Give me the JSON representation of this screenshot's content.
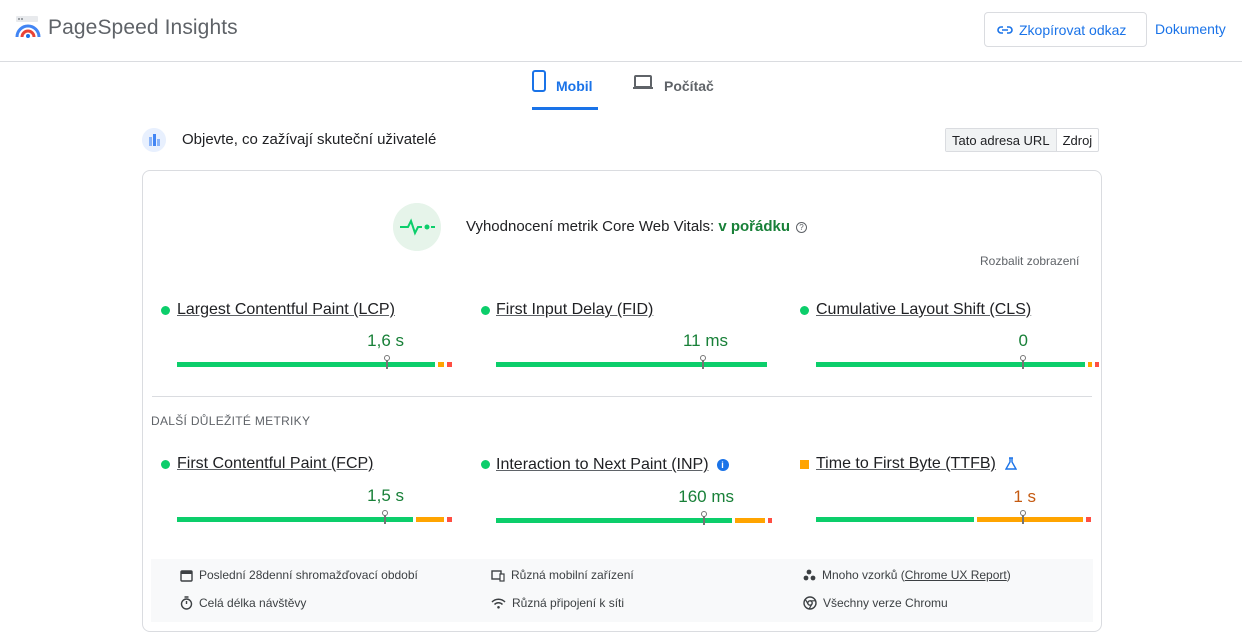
{
  "header": {
    "brand": "PageSpeed Insights",
    "copy_link_label": "Zkopírovat odkaz",
    "docs_label": "Dokumenty"
  },
  "tabs": [
    {
      "label": "Mobil",
      "active": true
    },
    {
      "label": "Počítač",
      "active": false
    }
  ],
  "field_section": {
    "title": "Objevte, co zažívají skuteční uživatelé",
    "toggle": [
      "Tato adresa URL",
      "Zdroj"
    ],
    "toggle_active": "Tato adresa URL"
  },
  "core_web_vitals": {
    "label": "Vyhodnocení metrik Core Web Vitals: ",
    "status": "v pořádku",
    "help_glyph": "?",
    "expand_label": "Rozbalit zobrazení"
  },
  "core_metrics": [
    {
      "name": "Largest Contentful Paint (LCP)",
      "value": "1,6 s",
      "status": "good",
      "distribution": {
        "good": 0.94,
        "needs_improvement": 0.03,
        "poor": 0.03
      },
      "p75_position": 0.755
    },
    {
      "name": "First Input Delay (FID)",
      "value": "11 ms",
      "status": "good",
      "distribution": {
        "good": 1.0,
        "needs_improvement": 0.0,
        "poor": 0.0
      },
      "p75_position": 0.755
    },
    {
      "name": "Cumulative Layout Shift (CLS)",
      "value": "0",
      "status": "good",
      "distribution": {
        "good": 0.98,
        "needs_improvement": 0.01,
        "poor": 0.01
      },
      "p75_position": 0.745
    }
  ],
  "other_metrics_title": "DALŠÍ DŮLEŽITÉ METRIKY",
  "other_metrics": [
    {
      "name": "First Contentful Paint (FCP)",
      "value": "1,5 s",
      "status": "good",
      "distribution": {
        "good": 0.86,
        "needs_improvement": 0.11,
        "poor": 0.03
      },
      "p75_position": 0.748
    },
    {
      "name": "Interaction to Next Paint (INP)",
      "value": "160 ms",
      "status": "good",
      "distribution": {
        "good": 0.86,
        "needs_improvement": 0.12,
        "poor": 0.02
      },
      "p75_position": 0.748,
      "info_glyph": "i"
    },
    {
      "name": "Time to First Byte (TTFB)",
      "value": "1 s",
      "status": "needs_improvement",
      "distribution": {
        "good": 0.58,
        "needs_improvement": 0.39,
        "poor": 0.03
      },
      "p75_position": 0.745
    }
  ],
  "footer": {
    "period": "Poslední 28denní shromažďovací období",
    "devices": "Různá mobilní zařízení",
    "samples_prefix": "Mnoho vzorků (",
    "samples_link": "Chrome UX Report",
    "samples_suffix": ")",
    "duration": "Celá délka návštěvy",
    "connections": "Různá připojení k síti",
    "chrome_versions": "Všechny verze Chromu"
  },
  "colors": {
    "accent": "#1a73e8",
    "good": "#0cce6b",
    "average": "#ffa400",
    "poor": "#ff4e42",
    "pass_text": "#188038"
  }
}
